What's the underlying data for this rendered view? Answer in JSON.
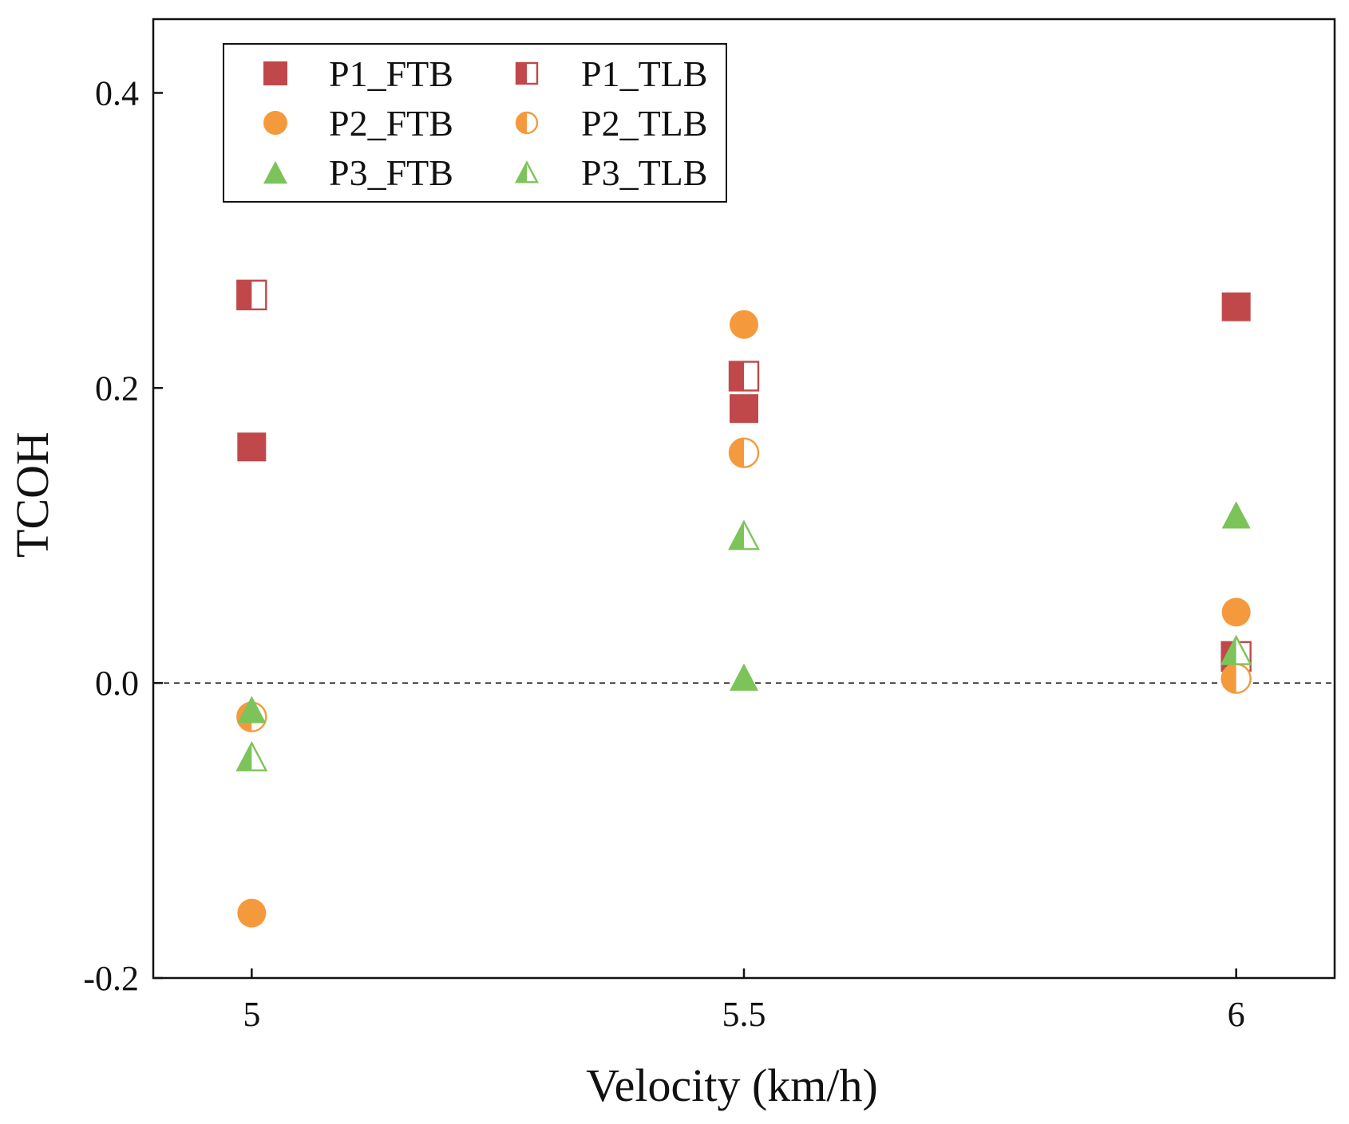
{
  "chart_data": {
    "type": "scatter",
    "xlabel": "Velocity (km/h)",
    "ylabel": "TCOH",
    "x_ticks": [
      "5",
      "5.5",
      "6"
    ],
    "x_tick_values": [
      5,
      5.5,
      6
    ],
    "y_ticks": [
      "-0.2",
      "0.0",
      "0.2",
      "0.4"
    ],
    "y_tick_values": [
      -0.2,
      0.0,
      0.2,
      0.4
    ],
    "xlim": [
      4.9,
      6.1
    ],
    "ylim": [
      -0.2,
      0.45
    ],
    "reference_line": {
      "y": 0.0,
      "style": "dashed"
    },
    "legend_position": "top-left",
    "legend_columns": 2,
    "grid": false,
    "series": [
      {
        "name": "P1_FTB",
        "marker": "square",
        "fill": "full",
        "color": "#c0484a",
        "points": [
          {
            "x": 5,
            "y": 0.16
          },
          {
            "x": 5.5,
            "y": 0.186
          },
          {
            "x": 6,
            "y": 0.255
          }
        ]
      },
      {
        "name": "P1_TLB",
        "marker": "square",
        "fill": "left-half",
        "color": "#c0484a",
        "points": [
          {
            "x": 5,
            "y": 0.263
          },
          {
            "x": 5.5,
            "y": 0.208
          },
          {
            "x": 6,
            "y": 0.018
          }
        ]
      },
      {
        "name": "P2_FTB",
        "marker": "circle",
        "fill": "full",
        "color": "#f59a3c",
        "points": [
          {
            "x": 5,
            "y": -0.156
          },
          {
            "x": 5.5,
            "y": 0.243
          },
          {
            "x": 6,
            "y": 0.048
          }
        ]
      },
      {
        "name": "P2_TLB",
        "marker": "circle",
        "fill": "left-half",
        "color": "#f59a3c",
        "points": [
          {
            "x": 5,
            "y": -0.023
          },
          {
            "x": 5.5,
            "y": 0.156
          },
          {
            "x": 6,
            "y": 0.003
          }
        ]
      },
      {
        "name": "P3_FTB",
        "marker": "triangle",
        "fill": "full",
        "color": "#7cc45a",
        "points": [
          {
            "x": 5,
            "y": -0.018
          },
          {
            "x": 5.5,
            "y": 0.004
          },
          {
            "x": 6,
            "y": 0.114
          }
        ]
      },
      {
        "name": "P3_TLB",
        "marker": "triangle",
        "fill": "left-half",
        "color": "#7cc45a",
        "points": [
          {
            "x": 5,
            "y": -0.05
          },
          {
            "x": 5.5,
            "y": 0.1
          },
          {
            "x": 6,
            "y": 0.022
          }
        ]
      }
    ]
  }
}
